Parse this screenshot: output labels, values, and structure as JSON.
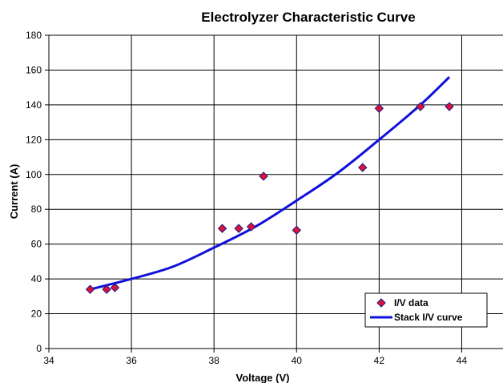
{
  "chart_data": {
    "type": "scatter",
    "title": "Electrolyzer Characteristic Curve",
    "xlabel": "Voltage (V)",
    "ylabel": "Current (A)",
    "xlim": [
      34,
      45
    ],
    "ylim": [
      0,
      180
    ],
    "x_ticks": [
      34,
      36,
      38,
      40,
      42,
      44
    ],
    "y_ticks": [
      0,
      20,
      40,
      60,
      80,
      100,
      120,
      140,
      160,
      180
    ],
    "grid": true,
    "legend_position": "bottom-right",
    "series": [
      {
        "name": "I/V data",
        "type": "scatter",
        "marker": "diamond",
        "color": "#dd1133",
        "edge_color": "#1a1a8c",
        "points": [
          {
            "x": 35.0,
            "y": 34
          },
          {
            "x": 35.4,
            "y": 34
          },
          {
            "x": 35.6,
            "y": 35
          },
          {
            "x": 38.2,
            "y": 69
          },
          {
            "x": 38.6,
            "y": 69
          },
          {
            "x": 38.9,
            "y": 70
          },
          {
            "x": 39.2,
            "y": 99
          },
          {
            "x": 40.0,
            "y": 68
          },
          {
            "x": 41.6,
            "y": 104
          },
          {
            "x": 42.0,
            "y": 138
          },
          {
            "x": 43.0,
            "y": 139
          },
          {
            "x": 43.7,
            "y": 139
          }
        ]
      },
      {
        "name": "Stack I/V curve",
        "type": "line",
        "color": "#1010dd",
        "points": [
          {
            "x": 35.0,
            "y": 34
          },
          {
            "x": 36.0,
            "y": 40
          },
          {
            "x": 37.0,
            "y": 47
          },
          {
            "x": 38.0,
            "y": 58
          },
          {
            "x": 39.0,
            "y": 70
          },
          {
            "x": 40.0,
            "y": 85
          },
          {
            "x": 41.0,
            "y": 101
          },
          {
            "x": 42.0,
            "y": 120
          },
          {
            "x": 43.0,
            "y": 140
          },
          {
            "x": 43.7,
            "y": 156
          }
        ]
      }
    ]
  }
}
